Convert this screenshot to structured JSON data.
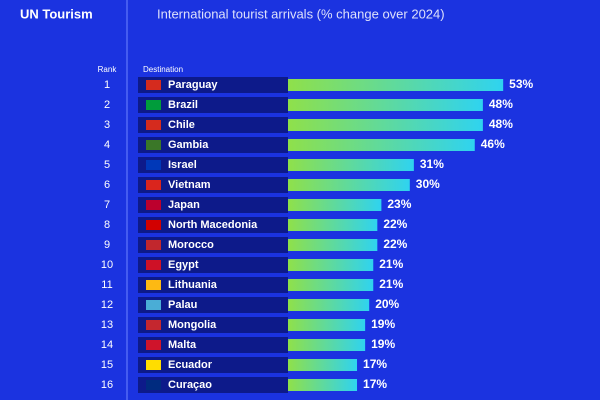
{
  "brand": "UN Tourism",
  "chart_data": {
    "type": "bar",
    "orientation": "horizontal",
    "title": "International tourist arrivals (% change over 2024)",
    "rank_header": "Rank",
    "category_header": "Destination",
    "ranks": [
      "1",
      "2",
      "3",
      "4",
      "5",
      "6",
      "7",
      "8",
      "9",
      "10",
      "11",
      "12",
      "13",
      "14",
      "15",
      "16"
    ],
    "categories": [
      "Paraguay",
      "Brazil",
      "Chile",
      "Gambia",
      "Israel",
      "Vietnam",
      "Japan",
      "North Macedonia",
      "Morocco",
      "Egypt",
      "Lithuania",
      "Palau",
      "Mongolia",
      "Malta",
      "Ecuador",
      "Curaçao"
    ],
    "values": [
      53,
      48,
      48,
      46,
      31,
      30,
      23,
      22,
      22,
      21,
      21,
      20,
      19,
      19,
      17,
      17
    ],
    "value_labels": [
      "53%",
      "48%",
      "48%",
      "46%",
      "31%",
      "30%",
      "23%",
      "22%",
      "22%",
      "21%",
      "21%",
      "20%",
      "19%",
      "19%",
      "17%",
      "17%"
    ]
  }
}
